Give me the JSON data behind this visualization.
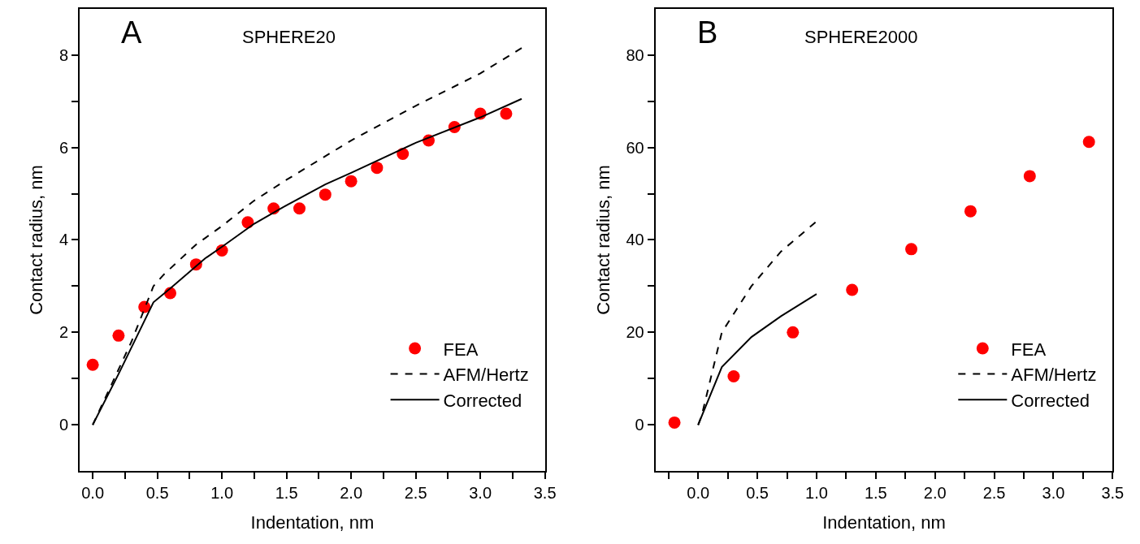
{
  "chart_data": [
    {
      "type": "line",
      "title": "SPHERE20",
      "annotations": [
        "A"
      ],
      "xlabel": "Indentation, nm",
      "ylabel": "Contact radius, nm",
      "xlim": [
        -0.1,
        3.5
      ],
      "ylim": [
        -1,
        9
      ],
      "xticks": [
        {
          "value": 0,
          "label": "0.0"
        },
        {
          "value": 0.25,
          "label": null
        },
        0.5,
        {
          "value": 0.75,
          "label": null
        },
        {
          "value": 1,
          "label": "1.0"
        },
        {
          "value": 1.25,
          "label": null
        },
        1.5,
        {
          "value": 1.75,
          "label": null
        },
        {
          "value": 2,
          "label": "2.0"
        },
        {
          "value": 2.25,
          "label": null
        },
        2.5,
        {
          "value": 2.75,
          "label": null
        },
        {
          "value": 3,
          "label": "3.0"
        },
        {
          "value": 3.25,
          "label": null
        },
        3.5
      ],
      "yticks": [
        0,
        {
          "value": 1,
          "label": null
        },
        2,
        {
          "value": 3,
          "label": null
        },
        4,
        {
          "value": 5,
          "label": null
        },
        6,
        {
          "value": 7,
          "label": null
        },
        8
      ],
      "legend": "bottom right",
      "series": [
        {
          "name": "FEA",
          "type": "scatter",
          "marker": "circle",
          "color": "#ff0000",
          "x": [
            0,
            0.2,
            0.4,
            0.6,
            0.8,
            1.0,
            1.2,
            1.4,
            1.6,
            1.8,
            2.0,
            2.2,
            2.4,
            2.6,
            2.8,
            3.0,
            3.2
          ],
          "values": [
            1.3,
            1.93,
            2.55,
            2.85,
            3.47,
            3.77,
            4.38,
            4.68,
            4.68,
            4.98,
            5.27,
            5.56,
            5.86,
            6.15,
            6.44,
            6.73,
            6.73
          ]
        },
        {
          "name": "AFM/Hertz",
          "line_style": "dashed",
          "color": "#000000",
          "x": [
            0,
            0.1,
            0.3,
            0.47,
            0.55,
            0.8,
            1.0,
            1.25,
            1.5,
            2.0,
            2.5,
            3.0,
            3.32
          ],
          "values": [
            0,
            0.6,
            1.8,
            3.0,
            3.25,
            3.9,
            4.3,
            4.85,
            5.3,
            6.15,
            6.9,
            7.6,
            8.15
          ]
        },
        {
          "name": "Corrected",
          "line_style": "solid",
          "color": "#000000",
          "x": [
            0,
            0.2,
            0.47,
            0.6,
            0.87,
            1.0,
            1.25,
            1.5,
            1.8,
            2.0,
            2.5,
            3.0,
            3.32
          ],
          "values": [
            0,
            1.1,
            2.65,
            2.95,
            3.6,
            3.85,
            4.35,
            4.75,
            5.2,
            5.45,
            6.1,
            6.65,
            7.05
          ]
        }
      ]
    },
    {
      "type": "line",
      "title": "SPHERE2000",
      "annotations": [
        "B"
      ],
      "xlabel": "Indentation, nm",
      "ylabel": "Contact radius, nm",
      "xlim": [
        -0.36,
        3.5
      ],
      "ylim": [
        -10,
        90
      ],
      "xticks": [
        {
          "value": -0.25,
          "label": null
        },
        {
          "value": 0,
          "label": "0.0"
        },
        {
          "value": 0.25,
          "label": null
        },
        0.5,
        {
          "value": 0.75,
          "label": null
        },
        {
          "value": 1,
          "label": "1.0"
        },
        {
          "value": 1.25,
          "label": null
        },
        1.5,
        {
          "value": 1.75,
          "label": null
        },
        {
          "value": 2,
          "label": "2.0"
        },
        {
          "value": 2.25,
          "label": null
        },
        2.5,
        {
          "value": 2.75,
          "label": null
        },
        {
          "value": 3,
          "label": "3.0"
        },
        {
          "value": 3.25,
          "label": null
        },
        3.5
      ],
      "yticks": [
        0,
        {
          "value": 10,
          "label": null
        },
        20,
        {
          "value": 30,
          "label": null
        },
        40,
        {
          "value": 50,
          "label": null
        },
        60,
        {
          "value": 70,
          "label": null
        },
        80
      ],
      "legend": "bottom right",
      "series": [
        {
          "name": "FEA",
          "type": "scatter",
          "marker": "circle",
          "color": "#ff0000",
          "x": [
            -0.2,
            0.3,
            0.8,
            1.3,
            1.8,
            2.3,
            2.8,
            3.3
          ],
          "values": [
            0.5,
            10.5,
            20,
            29.2,
            38,
            46.2,
            53.8,
            61.2
          ]
        },
        {
          "name": "AFM/Hertz",
          "line_style": "dashed",
          "color": "#000000",
          "x": [
            0,
            0.03,
            0.2,
            0.45,
            0.7,
            1.0
          ],
          "values": [
            0,
            2,
            20,
            30,
            37.5,
            44
          ]
        },
        {
          "name": "Corrected",
          "line_style": "solid",
          "color": "#000000",
          "x": [
            0,
            0.2,
            0.45,
            0.7,
            1.0
          ],
          "values": [
            0,
            12.5,
            19,
            23.5,
            28.3
          ]
        }
      ]
    }
  ]
}
